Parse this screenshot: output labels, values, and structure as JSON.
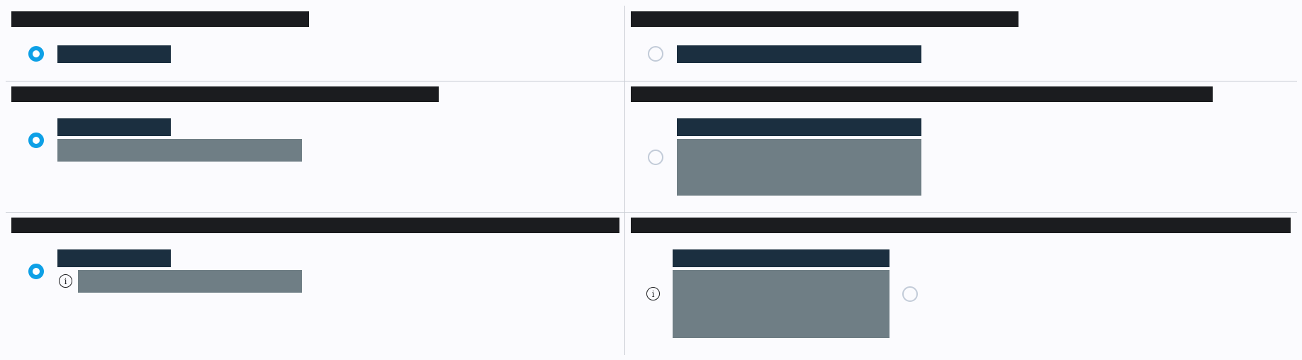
{
  "colors": {
    "background": "#fbfbfe",
    "title_bar": "#1b1c1f",
    "label_bar": "#1b2f40",
    "description_bar": "#6f7e85",
    "radio_checked": "#0ea0e6",
    "radio_unchecked_border": "#c2cbd8",
    "divider": "#c9cdd4"
  },
  "icons": {
    "radio_checked": "radio-checked-icon",
    "radio_unchecked": "radio-unchecked-icon",
    "info": "info-icon"
  },
  "info_glyph": "i",
  "cells": [
    {
      "title": "",
      "option_label": "",
      "description": "",
      "checked": true
    },
    {
      "title": "",
      "option_label": "",
      "description": "",
      "checked": false
    },
    {
      "title": "",
      "option_label": "",
      "description": "",
      "checked": true
    },
    {
      "title": "",
      "option_label": "",
      "description": "",
      "checked": false
    },
    {
      "title": "",
      "option_label": "",
      "description": "",
      "checked": true
    },
    {
      "title": "",
      "option_label": "",
      "description": "",
      "checked": false
    }
  ]
}
